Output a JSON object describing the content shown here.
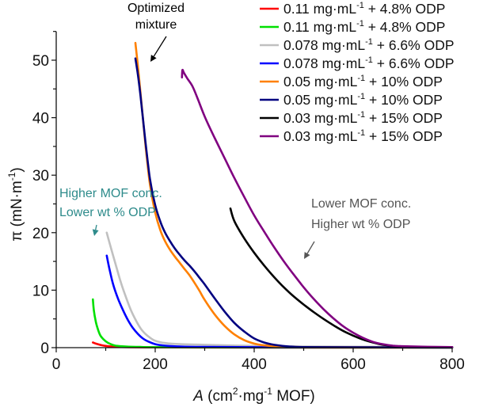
{
  "chart_data": {
    "type": "line",
    "title": "",
    "xlabel": {
      "italic": "A",
      "rest": " (cm",
      "sup1": "2",
      "mid": "·mg",
      "sup2": "-1",
      "end": " MOF)"
    },
    "ylabel": {
      "main": "π (mN·m",
      "sup": "-1",
      "end": ")"
    },
    "xlim": [
      0,
      800
    ],
    "ylim": [
      -1,
      55
    ],
    "xticks": [
      0,
      200,
      400,
      600,
      800
    ],
    "yticks": [
      0,
      10,
      20,
      30,
      40,
      50
    ],
    "grid": false,
    "legend_position": "top-right",
    "series": [
      {
        "name": "0.11 mg·mL-1 + 4.8% ODP",
        "label_main": "0.11 mg·mL",
        "label_sup": "-1",
        "label_end": " + 4.8% ODP",
        "color": "#ff0000",
        "x": [
          74,
          80,
          90,
          100,
          120,
          150,
          200,
          300,
          500,
          800
        ],
        "y": [
          0.9,
          0.7,
          0.45,
          0.3,
          0.15,
          0.08,
          0.05,
          0.03,
          0.02,
          0.02
        ]
      },
      {
        "name": "0.11 mg·mL-1 + 4.8% ODP",
        "label_main": "0.11 mg·mL",
        "label_sup": "-1",
        "label_end": " + 4.8% ODP",
        "color": "#00e000",
        "x": [
          74,
          76,
          80,
          85,
          90,
          100,
          110,
          120,
          140,
          170,
          200,
          300,
          500,
          800
        ],
        "y": [
          8.4,
          6.5,
          4.5,
          3.0,
          2.0,
          1.1,
          0.6,
          0.35,
          0.2,
          0.12,
          0.08,
          0.05,
          0.03,
          0.02
        ]
      },
      {
        "name": "0.078 mg·mL-1 + 6.6% ODP",
        "label_main": "0.078 mg·mL",
        "label_sup": "-1",
        "label_end": " + 6.6% ODP",
        "color": "#c0c0c0",
        "x": [
          102,
          110,
          120,
          130,
          140,
          150,
          160,
          170,
          180,
          190,
          200,
          220,
          250,
          300,
          400,
          500,
          800
        ],
        "y": [
          20,
          17.5,
          14.5,
          11.5,
          9,
          6.7,
          4.9,
          3.4,
          2.4,
          1.7,
          1.2,
          0.8,
          0.6,
          0.5,
          0.3,
          0.2,
          0.1
        ]
      },
      {
        "name": "0.078 mg·mL-1 + 6.6% ODP",
        "label_main": "0.078 mg·mL",
        "label_sup": "-1",
        "label_end": " + 6.6% ODP",
        "color": "#0000ff",
        "x": [
          102,
          108,
          115,
          125,
          135,
          145,
          155,
          165,
          175,
          185,
          200,
          220,
          250,
          300,
          400,
          500,
          800
        ],
        "y": [
          16,
          13.5,
          11,
          8.5,
          6.5,
          4.8,
          3.4,
          2.4,
          1.6,
          1.1,
          0.6,
          0.35,
          0.2,
          0.12,
          0.08,
          0.05,
          0.03
        ]
      },
      {
        "name": "0.05 mg·mL-1 + 10% ODP",
        "label_main": "0.05 mg·mL",
        "label_sup": "-1",
        "label_end": " + 10% ODP",
        "color": "#ff8000",
        "x": [
          160,
          165,
          170,
          175,
          180,
          185,
          190,
          200,
          210,
          220,
          230,
          240,
          250,
          260,
          270,
          280,
          290,
          300,
          320,
          340,
          360,
          380,
          400,
          420,
          450,
          500,
          600,
          800
        ],
        "y": [
          53,
          49,
          44.5,
          40,
          35.5,
          31.5,
          28,
          23.5,
          20.5,
          18.5,
          17,
          15.8,
          14.7,
          13.6,
          12.5,
          11.2,
          9.8,
          8.3,
          5.8,
          3.8,
          2.3,
          1.3,
          0.7,
          0.4,
          0.2,
          0.1,
          0.05,
          0.03
        ]
      },
      {
        "name": "0.05 mg·mL-1 + 10% ODP",
        "label_main": "0.05 mg·mL",
        "label_sup": "-1",
        "label_end": " + 10% ODP",
        "color": "#000080",
        "x": [
          160,
          165,
          170,
          175,
          180,
          185,
          190,
          200,
          210,
          220,
          230,
          240,
          250,
          260,
          270,
          280,
          290,
          300,
          320,
          340,
          360,
          380,
          400,
          420,
          440,
          470,
          500,
          600,
          800
        ],
        "y": [
          50.3,
          47.5,
          44,
          40,
          36,
          32.3,
          29,
          24.8,
          22,
          20,
          18.5,
          17.2,
          16.1,
          15.1,
          14.2,
          13.2,
          12.1,
          11,
          8.6,
          6.3,
          4.3,
          2.8,
          1.6,
          0.9,
          0.5,
          0.2,
          0.1,
          0.05,
          0.03
        ]
      },
      {
        "name": "0.03 mg·mL-1 + 15% ODP",
        "label_main": "0.03 mg·mL",
        "label_sup": "-1",
        "label_end": " + 15% ODP",
        "color": "#000000",
        "x": [
          352,
          360,
          380,
          400,
          420,
          440,
          460,
          480,
          500,
          520,
          540,
          560,
          580,
          600,
          620,
          640,
          660,
          680,
          700,
          750,
          800
        ],
        "y": [
          24.2,
          22,
          19,
          16.5,
          14.3,
          12.3,
          10.5,
          8.9,
          7.5,
          6.2,
          5.0,
          3.9,
          2.9,
          2.1,
          1.4,
          0.9,
          0.5,
          0.3,
          0.2,
          0.1,
          0.1
        ]
      },
      {
        "name": "0.03 mg·mL-1 + 15% ODP",
        "label_main": "0.03 mg·mL",
        "label_sup": "-1",
        "label_end": " + 15% ODP",
        "color": "#800080",
        "x": [
          254,
          255,
          258,
          265,
          275,
          285,
          300,
          320,
          340,
          360,
          380,
          400,
          420,
          440,
          460,
          480,
          500,
          520,
          540,
          560,
          580,
          600,
          620,
          640,
          660,
          680,
          700,
          750,
          800
        ],
        "y": [
          47,
          48.3,
          47.8,
          46.8,
          45.5,
          43.5,
          40.2,
          36.5,
          33,
          29.5,
          26.2,
          23,
          20.2,
          17.5,
          15,
          12.7,
          10.5,
          8.5,
          6.7,
          5.1,
          3.7,
          2.6,
          1.7,
          1.0,
          0.6,
          0.35,
          0.25,
          0.15,
          0.1
        ]
      }
    ],
    "annotations": [
      {
        "id": "optimized",
        "lines": [
          "Optimized",
          "mixture"
        ],
        "color": "#000000",
        "arrow_to": [
          178,
          48
        ]
      },
      {
        "id": "higher",
        "lines": [
          "Higher  MOF conc.",
          "Lower wt % ODP"
        ],
        "color": "#2e8b8b",
        "arrow_to": [
          82,
          20
        ]
      },
      {
        "id": "lower",
        "lines": [
          "Lower MOF conc.",
          "Higher wt % ODP"
        ],
        "color": "#555555",
        "arrow_to": [
          555,
          15.5
        ]
      }
    ]
  }
}
